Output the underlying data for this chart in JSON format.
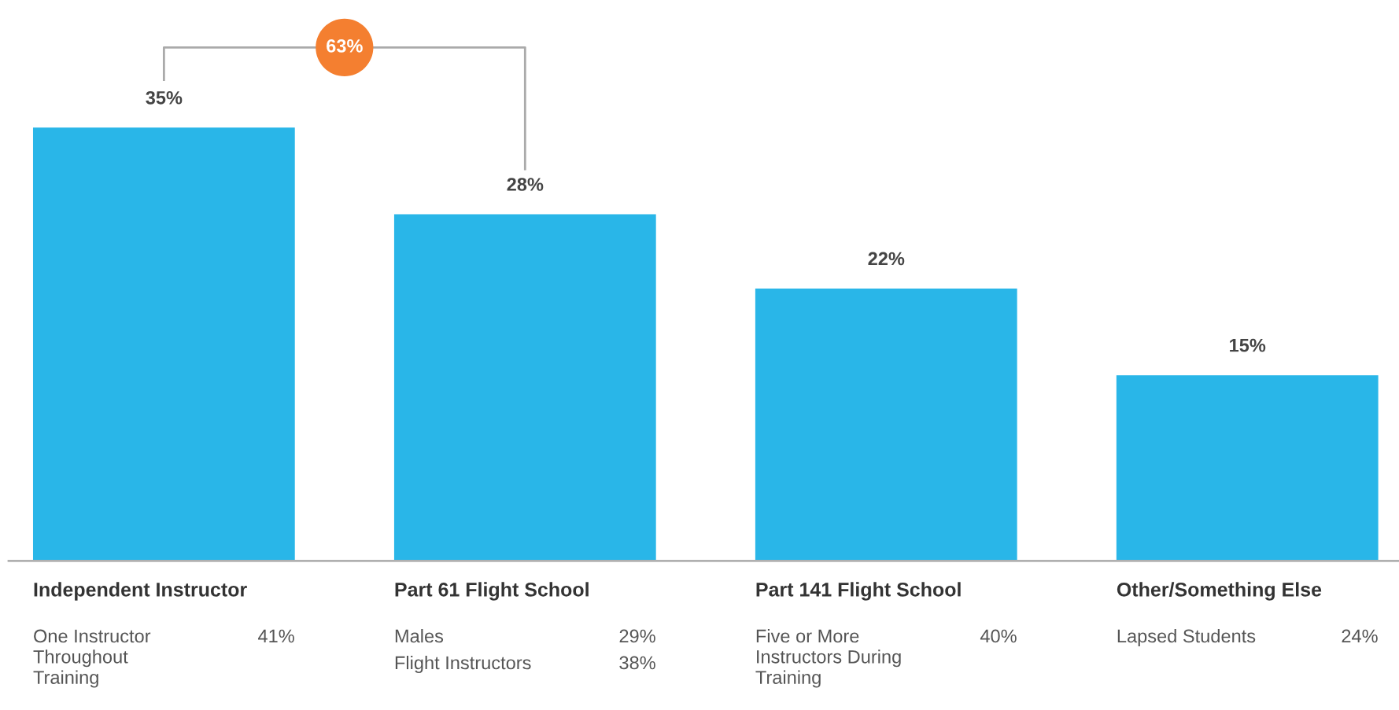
{
  "chart_data": {
    "type": "bar",
    "categories": [
      "Independent Instructor",
      "Part 61 Flight School",
      "Part 141 Flight School",
      "Other/Something Else"
    ],
    "values": [
      35,
      28,
      22,
      15
    ],
    "value_labels": [
      "35%",
      "28%",
      "22%",
      "15%"
    ],
    "color": "#29b6e8",
    "annotations": [
      "63%",
      "One Instructor\nThroughout\nTraining",
      "41%",
      "Males",
      "29%",
      "Flight Instructors",
      "38%",
      "Five or More\nInstructors During\nTraining",
      "40%",
      "Lapsed Students",
      "24%"
    ]
  }
}
